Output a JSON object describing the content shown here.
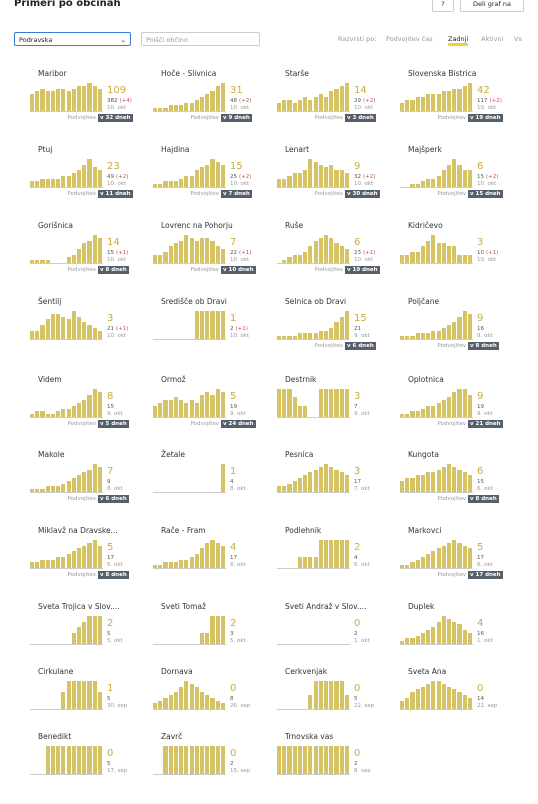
{
  "header": {
    "title": "Primeri po občinah",
    "help": "?",
    "share": "Deli graf na"
  },
  "controls": {
    "region": "Podravska",
    "search": "Poišči občino",
    "sort_label": "Razvrsti po:",
    "sort_options": [
      "Podvojitev čas",
      "Zadnji",
      "Aktivni",
      "Vs"
    ]
  },
  "labels": {
    "doubling": "Podvojitev"
  },
  "municipalities": [
    {
      "name": "Maribor",
      "current": 109,
      "total": 382,
      "change": "(+4)",
      "date": "10. okt",
      "doubling": "v 32 dneh",
      "bars": [
        6,
        7,
        8,
        7,
        7,
        8,
        8,
        7,
        8,
        9,
        9,
        10,
        9,
        8
      ]
    },
    {
      "name": "Hoče - Slivnica",
      "current": 31,
      "total": 48,
      "change": "(+2)",
      "date": "10. okt",
      "doubling": "v 9 dneh",
      "bars": [
        1,
        1,
        1,
        2,
        2,
        2,
        3,
        3,
        4,
        5,
        6,
        7,
        9,
        10
      ]
    },
    {
      "name": "Starše",
      "current": 14,
      "total": 29,
      "change": "(+2)",
      "date": "10. okt",
      "doubling": "v 3 dneh",
      "bars": [
        3,
        4,
        4,
        3,
        4,
        5,
        4,
        5,
        6,
        5,
        7,
        8,
        9,
        10
      ]
    },
    {
      "name": "Slovenska Bistrica",
      "current": 42,
      "total": 117,
      "change": "(+2)",
      "date": "10. okt",
      "doubling": "v 19 dneh",
      "bars": [
        3,
        4,
        4,
        5,
        5,
        6,
        6,
        6,
        7,
        7,
        8,
        8,
        9,
        10
      ]
    },
    {
      "name": "Ptuj",
      "current": 23,
      "total": 49,
      "change": "(+2)",
      "date": "10. okt",
      "doubling": "v 11 dneh",
      "bars": [
        2,
        2,
        3,
        3,
        3,
        3,
        4,
        4,
        5,
        6,
        8,
        10,
        7,
        6
      ]
    },
    {
      "name": "Hajdina",
      "current": 15,
      "total": 25,
      "change": "(+2)",
      "date": "10. okt",
      "doubling": "v 7 dneh",
      "bars": [
        1,
        1,
        2,
        2,
        2,
        3,
        4,
        4,
        6,
        7,
        8,
        10,
        9,
        8
      ]
    },
    {
      "name": "Lenart",
      "current": 9,
      "total": 32,
      "change": "(+2)",
      "date": "10. okt",
      "doubling": "v 30 dneh",
      "bars": [
        3,
        3,
        4,
        5,
        5,
        6,
        10,
        9,
        8,
        7,
        8,
        6,
        6,
        5
      ]
    },
    {
      "name": "Majšperk",
      "current": 6,
      "total": 15,
      "change": "(+2)",
      "date": "10. okt",
      "doubling": "v 15 dneh",
      "bars": [
        0,
        0,
        1,
        1,
        2,
        3,
        3,
        4,
        6,
        8,
        10,
        8,
        6,
        6
      ]
    },
    {
      "name": "Gorišnica",
      "current": 14,
      "total": 15,
      "change": "(+1)",
      "date": "10. okt",
      "doubling": "v 8 dneh",
      "bars": [
        1,
        1,
        1,
        1,
        0,
        0,
        0,
        2,
        3,
        5,
        7,
        8,
        10,
        9
      ]
    },
    {
      "name": "Lovrenc na Pohorju",
      "current": 7,
      "total": 22,
      "change": "(+1)",
      "date": "10. okt",
      "doubling": "v 10 dneh",
      "bars": [
        3,
        3,
        4,
        6,
        7,
        8,
        10,
        9,
        8,
        9,
        9,
        8,
        6,
        5
      ]
    },
    {
      "name": "Ruše",
      "current": 6,
      "total": 23,
      "change": "(+1)",
      "date": "10. okt",
      "doubling": "v 19 dneh",
      "bars": [
        0,
        1,
        2,
        3,
        3,
        4,
        6,
        8,
        9,
        10,
        9,
        7,
        6,
        5
      ]
    },
    {
      "name": "Kidričevo",
      "current": 3,
      "total": 10,
      "change": "(+1)",
      "date": "10. okt",
      "bars": [
        3,
        3,
        4,
        4,
        6,
        8,
        10,
        7,
        7,
        6,
        6,
        3,
        3,
        3
      ]
    },
    {
      "name": "Šentilj",
      "current": 3,
      "total": 21,
      "change": "(+1)",
      "date": "10. okt",
      "bars": [
        3,
        3,
        5,
        7,
        9,
        9,
        8,
        7,
        10,
        8,
        6,
        5,
        4,
        3
      ]
    },
    {
      "name": "Središče ob Dravi",
      "current": 1,
      "total": 2,
      "change": "(+1)",
      "date": "10. okt",
      "bars": [
        0,
        0,
        0,
        0,
        0,
        0,
        0,
        0,
        10,
        10,
        10,
        10,
        10,
        10
      ]
    },
    {
      "name": "Selnica ob Dravi",
      "current": 15,
      "total": 21,
      "date": "9. okt",
      "doubling": "v 6 dneh",
      "bars": [
        1,
        1,
        1,
        1,
        2,
        2,
        2,
        2,
        3,
        3,
        4,
        6,
        8,
        10
      ]
    },
    {
      "name": "Poljčane",
      "current": 9,
      "total": 16,
      "date": "9. okt",
      "doubling": "v 8 dneh",
      "bars": [
        1,
        1,
        1,
        2,
        2,
        2,
        3,
        3,
        4,
        5,
        6,
        8,
        10,
        9
      ]
    },
    {
      "name": "Videm",
      "current": 8,
      "total": 15,
      "date": "9. okt",
      "doubling": "v 5 dneh",
      "bars": [
        1,
        2,
        2,
        1,
        1,
        2,
        3,
        3,
        4,
        5,
        6,
        8,
        10,
        9
      ]
    },
    {
      "name": "Ormož",
      "current": 5,
      "total": 19,
      "date": "9. okt",
      "doubling": "v 24 dneh",
      "bars": [
        4,
        5,
        6,
        6,
        7,
        6,
        5,
        6,
        5,
        8,
        9,
        8,
        10,
        9
      ]
    },
    {
      "name": "Destrnik",
      "current": 3,
      "total": 7,
      "date": "9. okt",
      "bars": [
        10,
        10,
        10,
        7,
        4,
        4,
        0,
        0,
        10,
        10,
        10,
        10,
        10,
        10
      ]
    },
    {
      "name": "Oplotnica",
      "current": 9,
      "total": 19,
      "date": "9. okt",
      "doubling": "v 21 dneh",
      "bars": [
        1,
        1,
        2,
        2,
        3,
        4,
        4,
        5,
        6,
        7,
        9,
        10,
        10,
        8
      ]
    },
    {
      "name": "Makole",
      "current": 7,
      "total": 9,
      "date": "8. okt",
      "doubling": "v 6 dneh",
      "bars": [
        1,
        1,
        1,
        2,
        2,
        2,
        3,
        4,
        5,
        6,
        7,
        8,
        10,
        9
      ]
    },
    {
      "name": "Žetale",
      "current": 1,
      "total": 4,
      "date": "8. okt",
      "bars": [
        0,
        0,
        0,
        0,
        0,
        0,
        0,
        0,
        0,
        0,
        0,
        0,
        0,
        10
      ]
    },
    {
      "name": "Pesnica",
      "current": 3,
      "total": 17,
      "date": "7. okt",
      "bars": [
        2,
        2,
        3,
        4,
        5,
        6,
        7,
        8,
        9,
        10,
        9,
        8,
        7,
        6
      ]
    },
    {
      "name": "Kungota",
      "current": 6,
      "total": 15,
      "date": "6. okt",
      "doubling": "v 8 dneh",
      "bars": [
        4,
        5,
        5,
        6,
        6,
        7,
        7,
        8,
        9,
        10,
        9,
        8,
        7,
        6
      ]
    },
    {
      "name": "Miklavž na Dravske...",
      "current": 5,
      "total": 17,
      "date": "6. okt",
      "doubling": "v 8 dneh",
      "bars": [
        2,
        2,
        3,
        3,
        3,
        4,
        4,
        5,
        6,
        7,
        8,
        9,
        10,
        8
      ]
    },
    {
      "name": "Rače - Fram",
      "current": 4,
      "total": 17,
      "date": "6. okt",
      "bars": [
        1,
        1,
        2,
        2,
        2,
        3,
        3,
        4,
        5,
        7,
        9,
        10,
        9,
        8
      ]
    },
    {
      "name": "Podlehnik",
      "current": 2,
      "total": 4,
      "date": "6. okt",
      "bars": [
        0,
        0,
        0,
        0,
        4,
        4,
        4,
        4,
        10,
        10,
        10,
        10,
        10,
        10
      ]
    },
    {
      "name": "Markovci",
      "current": 5,
      "total": 17,
      "date": "6. okt",
      "doubling": "v 17 dneh",
      "bars": [
        1,
        1,
        2,
        3,
        4,
        5,
        6,
        7,
        8,
        9,
        10,
        9,
        8,
        7
      ]
    },
    {
      "name": "Sveta Trojica v Slov....",
      "current": 2,
      "total": 5,
      "date": "5. okt",
      "bars": [
        0,
        0,
        0,
        0,
        0,
        0,
        0,
        0,
        4,
        6,
        8,
        10,
        10,
        10
      ]
    },
    {
      "name": "Sveti Tomaž",
      "current": 2,
      "total": 3,
      "date": "5. okt",
      "bars": [
        0,
        0,
        0,
        0,
        0,
        0,
        0,
        0,
        0,
        4,
        4,
        10,
        10,
        10
      ]
    },
    {
      "name": "Sveti Andraž v Slov....",
      "current": 0,
      "total": 2,
      "date": "1. okt",
      "bars": [
        0,
        0,
        0,
        0,
        0,
        0,
        0,
        0,
        0,
        0,
        0,
        0,
        0,
        0
      ]
    },
    {
      "name": "Duplek",
      "current": 4,
      "total": 16,
      "date": "1. okt",
      "bars": [
        1,
        2,
        2,
        3,
        4,
        5,
        6,
        8,
        10,
        9,
        8,
        7,
        5,
        4
      ]
    },
    {
      "name": "Cirkulane",
      "current": 1,
      "total": 5,
      "date": "30. sep",
      "bars": [
        0,
        0,
        0,
        0,
        0,
        0,
        6,
        10,
        10,
        10,
        10,
        10,
        10,
        6
      ]
    },
    {
      "name": "Dornava",
      "current": 0,
      "total": 8,
      "date": "26. sep",
      "bars": [
        2,
        3,
        4,
        5,
        6,
        8,
        10,
        9,
        8,
        6,
        5,
        4,
        3,
        2
      ]
    },
    {
      "name": "Cerkvenjak",
      "current": 0,
      "total": 5,
      "date": "22. sep",
      "bars": [
        0,
        0,
        0,
        0,
        0,
        0,
        5,
        10,
        10,
        10,
        10,
        10,
        10,
        5
      ]
    },
    {
      "name": "Sveta Ana",
      "current": 0,
      "total": 14,
      "date": "22. sep",
      "bars": [
        3,
        4,
        6,
        7,
        8,
        9,
        10,
        10,
        9,
        8,
        7,
        6,
        5,
        4
      ]
    },
    {
      "name": "Benedikt",
      "current": 0,
      "total": 5,
      "date": "17. sep",
      "bars": [
        0,
        0,
        0,
        10,
        10,
        10,
        10,
        10,
        10,
        10,
        10,
        10,
        10,
        10
      ]
    },
    {
      "name": "Zavrč",
      "current": 0,
      "total": 2,
      "date": "15. sep",
      "bars": [
        0,
        0,
        10,
        10,
        10,
        10,
        10,
        10,
        10,
        10,
        10,
        10,
        10,
        10
      ]
    },
    {
      "name": "Trnovska vas",
      "current": 0,
      "total": 2,
      "date": "8. sep",
      "bars": [
        10,
        10,
        10,
        10,
        10,
        10,
        10,
        10,
        10,
        10,
        10,
        10,
        10,
        10
      ]
    }
  ]
}
